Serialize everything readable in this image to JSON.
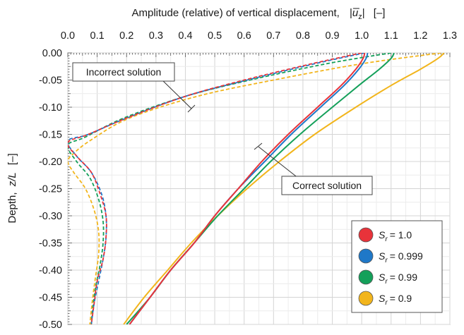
{
  "chart_data": {
    "type": "line",
    "title": "",
    "x_axis": {
      "position": "top",
      "label_prefix": "Amplitude (relative) of vertical displacement,",
      "label_symbol": "u",
      "label_subscript": "z",
      "label_unit": "[–]",
      "range": [
        0.0,
        1.3
      ],
      "ticks": [
        "0.0",
        "0.1",
        "0.2",
        "0.3",
        "0.4",
        "0.5",
        "0.6",
        "0.7",
        "0.8",
        "0.9",
        "1.0",
        "1.1",
        "1.2",
        "1.3"
      ]
    },
    "y_axis": {
      "label_prefix": "Depth,",
      "label_symbol": "z/L",
      "label_unit": "[–]",
      "range": [
        -0.5,
        0.0
      ],
      "ticks": [
        "0.00",
        "-0.05",
        "-0.10",
        "-0.15",
        "-0.20",
        "-0.25",
        "-0.30",
        "-0.35",
        "-0.40",
        "-0.45",
        "-0.50"
      ]
    },
    "grid": true,
    "legend_placement": "bottom-right",
    "series": [
      {
        "name": "= 1.0",
        "symbol": "S",
        "subscript": "r",
        "color": "#e8333a",
        "correct": [
          [
            1.01,
            0.0
          ],
          [
            1.005,
            -0.01
          ],
          [
            0.98,
            -0.03
          ],
          [
            0.93,
            -0.06
          ],
          [
            0.85,
            -0.1
          ],
          [
            0.75,
            -0.15
          ],
          [
            0.66,
            -0.2
          ],
          [
            0.58,
            -0.25
          ],
          [
            0.5,
            -0.3
          ],
          [
            0.43,
            -0.35
          ],
          [
            0.35,
            -0.4
          ],
          [
            0.28,
            -0.45
          ],
          [
            0.21,
            -0.5
          ]
        ],
        "incorrect": [
          [
            1.0,
            0.0
          ],
          [
            0.83,
            -0.02
          ],
          [
            0.6,
            -0.05
          ],
          [
            0.4,
            -0.08
          ],
          [
            0.2,
            -0.12
          ],
          [
            0.07,
            -0.15
          ],
          [
            0.0,
            -0.165
          ],
          [
            0.03,
            -0.19
          ],
          [
            0.08,
            -0.22
          ],
          [
            0.11,
            -0.26
          ],
          [
            0.13,
            -0.3
          ],
          [
            0.13,
            -0.34
          ],
          [
            0.12,
            -0.38
          ],
          [
            0.1,
            -0.42
          ],
          [
            0.09,
            -0.46
          ],
          [
            0.08,
            -0.5
          ]
        ]
      },
      {
        "name": "= 0.999",
        "symbol": "S",
        "subscript": "r",
        "color": "#1f78c8",
        "correct": [
          [
            1.02,
            0.0
          ],
          [
            1.015,
            -0.01
          ],
          [
            0.99,
            -0.03
          ],
          [
            0.94,
            -0.06
          ],
          [
            0.86,
            -0.1
          ],
          [
            0.76,
            -0.15
          ],
          [
            0.67,
            -0.2
          ],
          [
            0.58,
            -0.25
          ],
          [
            0.5,
            -0.3
          ],
          [
            0.43,
            -0.35
          ],
          [
            0.35,
            -0.4
          ],
          [
            0.28,
            -0.45
          ],
          [
            0.21,
            -0.5
          ]
        ],
        "incorrect": [
          [
            1.01,
            0.0
          ],
          [
            0.84,
            -0.02
          ],
          [
            0.61,
            -0.05
          ],
          [
            0.4,
            -0.08
          ],
          [
            0.2,
            -0.12
          ],
          [
            0.07,
            -0.15
          ],
          [
            0.0,
            -0.162
          ],
          [
            0.03,
            -0.19
          ],
          [
            0.08,
            -0.22
          ],
          [
            0.115,
            -0.26
          ],
          [
            0.13,
            -0.3
          ],
          [
            0.13,
            -0.34
          ],
          [
            0.12,
            -0.38
          ],
          [
            0.105,
            -0.42
          ],
          [
            0.09,
            -0.46
          ],
          [
            0.08,
            -0.5
          ]
        ]
      },
      {
        "name": "= 0.99",
        "symbol": "S",
        "subscript": "r",
        "color": "#14a05a",
        "correct": [
          [
            1.11,
            0.0
          ],
          [
            1.1,
            -0.01
          ],
          [
            1.06,
            -0.03
          ],
          [
            0.99,
            -0.06
          ],
          [
            0.9,
            -0.1
          ],
          [
            0.79,
            -0.15
          ],
          [
            0.69,
            -0.2
          ],
          [
            0.6,
            -0.25
          ],
          [
            0.51,
            -0.3
          ],
          [
            0.43,
            -0.35
          ],
          [
            0.35,
            -0.4
          ],
          [
            0.28,
            -0.45
          ],
          [
            0.2,
            -0.5
          ]
        ],
        "incorrect": [
          [
            1.1,
            0.0
          ],
          [
            0.88,
            -0.02
          ],
          [
            0.62,
            -0.05
          ],
          [
            0.4,
            -0.08
          ],
          [
            0.19,
            -0.12
          ],
          [
            0.06,
            -0.155
          ],
          [
            0.0,
            -0.17
          ],
          [
            0.03,
            -0.2
          ],
          [
            0.075,
            -0.23
          ],
          [
            0.105,
            -0.27
          ],
          [
            0.12,
            -0.31
          ],
          [
            0.12,
            -0.35
          ],
          [
            0.11,
            -0.39
          ],
          [
            0.095,
            -0.43
          ],
          [
            0.085,
            -0.47
          ],
          [
            0.08,
            -0.5
          ]
        ]
      },
      {
        "name": "= 0.9",
        "symbol": "S",
        "subscript": "r",
        "color": "#f2b51c",
        "correct": [
          [
            1.28,
            0.0
          ],
          [
            1.26,
            -0.01
          ],
          [
            1.2,
            -0.03
          ],
          [
            1.1,
            -0.06
          ],
          [
            0.98,
            -0.1
          ],
          [
            0.84,
            -0.15
          ],
          [
            0.72,
            -0.2
          ],
          [
            0.61,
            -0.25
          ],
          [
            0.51,
            -0.3
          ],
          [
            0.42,
            -0.35
          ],
          [
            0.34,
            -0.4
          ],
          [
            0.26,
            -0.45
          ],
          [
            0.19,
            -0.5
          ]
        ],
        "incorrect": [
          [
            1.27,
            0.0
          ],
          [
            1.0,
            -0.02
          ],
          [
            0.7,
            -0.05
          ],
          [
            0.44,
            -0.08
          ],
          [
            0.21,
            -0.12
          ],
          [
            0.08,
            -0.16
          ],
          [
            0.02,
            -0.185
          ],
          [
            0.0,
            -0.2
          ],
          [
            0.02,
            -0.22
          ],
          [
            0.06,
            -0.25
          ],
          [
            0.09,
            -0.29
          ],
          [
            0.105,
            -0.33
          ],
          [
            0.105,
            -0.37
          ],
          [
            0.095,
            -0.41
          ],
          [
            0.085,
            -0.45
          ],
          [
            0.075,
            -0.5
          ]
        ]
      }
    ],
    "annotations": [
      {
        "text": "Incorrect solution",
        "x": 0.43,
        "y": -0.125
      },
      {
        "text": "Correct solution",
        "x": 0.65,
        "y": -0.195
      }
    ]
  }
}
